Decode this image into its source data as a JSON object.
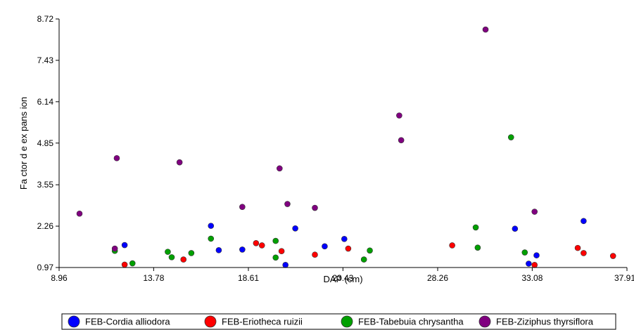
{
  "chart_data": {
    "type": "scatter",
    "xlabel": "DAP (cm)",
    "ylabel": "Fa ctor d e ex pans  ion",
    "xlim": [
      8.96,
      37.91
    ],
    "ylim": [
      0.97,
      8.72
    ],
    "xticks": [
      "8.96",
      "13.78",
      "18.61",
      "23.43",
      "28.26",
      "33.08",
      "37.91"
    ],
    "yticks": [
      "0.97",
      "2.26",
      "3.55",
      "4.85",
      "6.14",
      "7.43",
      "8.72"
    ],
    "grid": false,
    "legend_position": "bottom",
    "series": [
      {
        "name": "FEB-Cordia alliodora",
        "color": "#0000ff",
        "points": [
          [
            12.3,
            1.67
          ],
          [
            16.7,
            2.27
          ],
          [
            17.1,
            1.51
          ],
          [
            18.3,
            1.53
          ],
          [
            20.5,
            1.05
          ],
          [
            21.0,
            2.19
          ],
          [
            22.5,
            1.63
          ],
          [
            23.5,
            1.86
          ],
          [
            32.2,
            2.18
          ],
          [
            32.9,
            1.09
          ],
          [
            33.3,
            1.35
          ],
          [
            35.7,
            2.42
          ]
        ]
      },
      {
        "name": "FEB-Eriotheca ruizii",
        "color": "#ff0000",
        "points": [
          [
            12.3,
            1.06
          ],
          [
            15.3,
            1.22
          ],
          [
            19.0,
            1.73
          ],
          [
            19.3,
            1.66
          ],
          [
            20.3,
            1.48
          ],
          [
            22.0,
            1.37
          ],
          [
            23.7,
            1.56
          ],
          [
            29.0,
            1.66
          ],
          [
            33.2,
            1.05
          ],
          [
            35.4,
            1.58
          ],
          [
            35.7,
            1.42
          ],
          [
            37.2,
            1.33
          ]
        ]
      },
      {
        "name": "FEB-Tabebuia chrysantha",
        "color": "#00a000",
        "points": [
          [
            11.8,
            1.49
          ],
          [
            12.7,
            1.1
          ],
          [
            14.5,
            1.46
          ],
          [
            14.7,
            1.29
          ],
          [
            15.7,
            1.42
          ],
          [
            16.7,
            1.87
          ],
          [
            20.0,
            1.8
          ],
          [
            20.0,
            1.28
          ],
          [
            24.5,
            1.22
          ],
          [
            24.8,
            1.5
          ],
          [
            30.2,
            2.22
          ],
          [
            30.3,
            1.59
          ],
          [
            32.0,
            5.03
          ],
          [
            32.7,
            1.44
          ]
        ]
      },
      {
        "name": "FEB-Ziziphus thyrsiflora",
        "color": "#800080",
        "points": [
          [
            10.0,
            2.65
          ],
          [
            11.8,
            1.56
          ],
          [
            11.9,
            4.38
          ],
          [
            15.1,
            4.25
          ],
          [
            18.3,
            2.86
          ],
          [
            20.2,
            4.06
          ],
          [
            20.6,
            2.95
          ],
          [
            22.0,
            2.83
          ],
          [
            26.3,
            5.71
          ],
          [
            26.4,
            4.94
          ],
          [
            30.7,
            8.39
          ],
          [
            33.2,
            2.71
          ]
        ]
      }
    ]
  }
}
